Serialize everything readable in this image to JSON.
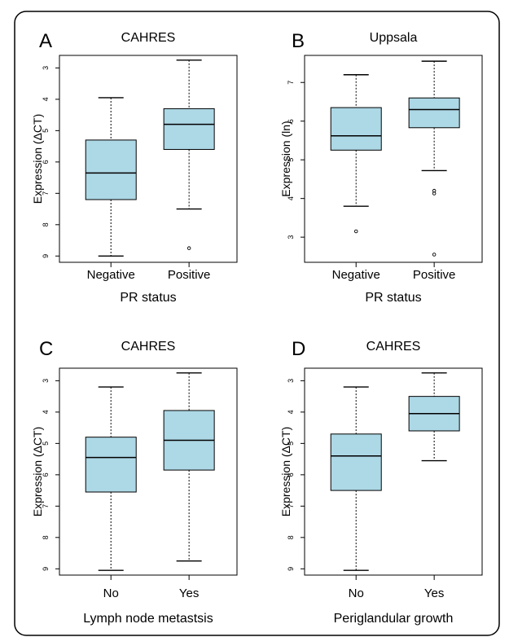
{
  "chart_data": [
    {
      "type": "box",
      "panel_letter": "A",
      "title": "CAHRES",
      "xlabel": "PR status",
      "ylabel": "Expression (ΔCT)",
      "y_reversed": true,
      "ylim": [
        2.6,
        9.2
      ],
      "yticks": [
        "3",
        "4",
        "5",
        "6",
        "7",
        "8",
        "9"
      ],
      "categories": [
        "Negative",
        "Positive"
      ],
      "box_color": "#add8e6",
      "boxes": [
        {
          "name": "Negative",
          "whisker_low": 3.95,
          "q1": 5.3,
          "median": 6.35,
          "q3": 7.2,
          "whisker_high": 9.0,
          "outliers": []
        },
        {
          "name": "Positive",
          "whisker_low": 2.75,
          "q1": 4.3,
          "median": 4.8,
          "q3": 5.6,
          "whisker_high": 7.5,
          "outliers": [
            8.75
          ]
        }
      ]
    },
    {
      "type": "box",
      "panel_letter": "B",
      "title": "Uppsala",
      "xlabel": "PR status",
      "ylabel": "Expression (ln)",
      "y_reversed": false,
      "ylim": [
        2.35,
        7.7
      ],
      "yticks": [
        "3",
        "4",
        "5",
        "6",
        "7"
      ],
      "categories": [
        "Negative",
        "Positive"
      ],
      "box_color": "#add8e6",
      "boxes": [
        {
          "name": "Negative",
          "whisker_low": 3.8,
          "q1": 5.25,
          "median": 5.62,
          "q3": 6.35,
          "whisker_high": 7.2,
          "outliers": [
            3.15
          ]
        },
        {
          "name": "Positive",
          "whisker_low": 4.72,
          "q1": 5.83,
          "median": 6.3,
          "q3": 6.6,
          "whisker_high": 7.55,
          "outliers": [
            4.2,
            4.13,
            2.55
          ]
        }
      ]
    },
    {
      "type": "box",
      "panel_letter": "C",
      "title": "CAHRES",
      "xlabel": "Lymph node metastsis",
      "ylabel": "Expression (ΔCT)",
      "y_reversed": true,
      "ylim": [
        2.6,
        9.2
      ],
      "yticks": [
        "3",
        "4",
        "5",
        "6",
        "7",
        "8",
        "9"
      ],
      "categories": [
        "No",
        "Yes"
      ],
      "box_color": "#add8e6",
      "boxes": [
        {
          "name": "No",
          "whisker_low": 3.2,
          "q1": 4.8,
          "median": 5.45,
          "q3": 6.55,
          "whisker_high": 9.05,
          "outliers": []
        },
        {
          "name": "Yes",
          "whisker_low": 2.75,
          "q1": 3.95,
          "median": 4.9,
          "q3": 5.85,
          "whisker_high": 8.75,
          "outliers": []
        }
      ]
    },
    {
      "type": "box",
      "panel_letter": "D",
      "title": "CAHRES",
      "xlabel": "Periglandular growth",
      "ylabel": "Expression (ΔCT)",
      "y_reversed": true,
      "ylim": [
        2.6,
        9.2
      ],
      "yticks": [
        "3",
        "4",
        "5",
        "6",
        "7",
        "8",
        "9"
      ],
      "categories": [
        "No",
        "Yes"
      ],
      "box_color": "#add8e6",
      "boxes": [
        {
          "name": "No",
          "whisker_low": 3.2,
          "q1": 4.7,
          "median": 5.4,
          "q3": 6.5,
          "whisker_high": 9.05,
          "outliers": []
        },
        {
          "name": "Yes",
          "whisker_low": 2.75,
          "q1": 3.5,
          "median": 4.05,
          "q3": 4.6,
          "whisker_high": 5.55,
          "outliers": []
        }
      ]
    }
  ]
}
